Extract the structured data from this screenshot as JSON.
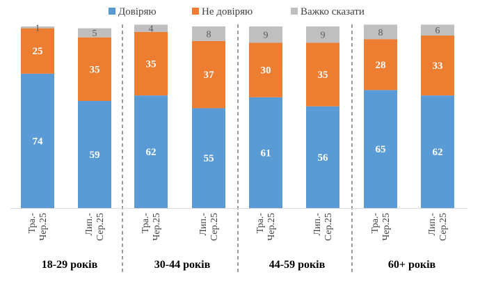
{
  "chart_data": {
    "type": "bar",
    "stacked": true,
    "series": [
      {
        "name": "Довіряю",
        "color": "#5B9BD5",
        "values": [
          74,
          59,
          62,
          55,
          61,
          56,
          65,
          62
        ]
      },
      {
        "name": "Не довіряю",
        "color": "#ED7D31",
        "values": [
          25,
          35,
          35,
          37,
          30,
          35,
          28,
          33
        ]
      },
      {
        "name": "Важко сказати",
        "color": "#BFBFBF",
        "values": [
          1,
          5,
          4,
          8,
          9,
          9,
          8,
          6
        ]
      }
    ],
    "categories": [
      [
        "Тра.-",
        "Чер.25"
      ],
      [
        "Лип.-",
        "Сер.25"
      ],
      [
        "Тра.-",
        "Чер.25"
      ],
      [
        "Лип.-",
        "Сер.25"
      ],
      [
        "Тра.-",
        "Чер.25"
      ],
      [
        "Лип.-",
        "Сер.25"
      ],
      [
        "Тра.-",
        "Чер.25"
      ],
      [
        "Лип.-",
        "Сер.25"
      ]
    ],
    "groups": [
      "18-29 років",
      "30-44 років",
      "44-59 років",
      "60+ років"
    ],
    "ylim": [
      0,
      100
    ],
    "legend_position": "top"
  }
}
